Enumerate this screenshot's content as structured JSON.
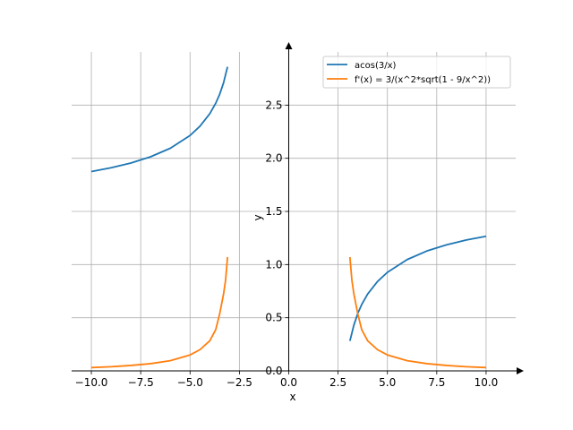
{
  "chart_data": {
    "type": "line",
    "title": "",
    "xlabel": "x",
    "ylabel": "y",
    "xlim": [
      -11.0,
      11.5
    ],
    "ylim": [
      0.0,
      3.0
    ],
    "grid": true,
    "legend_position": "top-right",
    "x_ticks": [
      -10.0,
      -7.5,
      -5.0,
      -2.5,
      0.0,
      2.5,
      5.0,
      7.5,
      10.0
    ],
    "x_tick_labels": [
      "−10.0",
      "−7.5",
      "−5.0",
      "−2.5",
      "0.0",
      "2.5",
      "5.0",
      "7.5",
      "10.0"
    ],
    "y_ticks": [
      0.0,
      0.5,
      1.0,
      1.5,
      2.0,
      2.5
    ],
    "y_tick_labels": [
      "0.0",
      "0.5",
      "1.0",
      "1.5",
      "2.0",
      "2.5"
    ],
    "series": [
      {
        "name": "acos(3/x)",
        "color": "#1f77b4",
        "segments": [
          {
            "x": [
              -10.0,
              -9.0,
              -8.0,
              -7.0,
              -6.0,
              -5.0,
              -4.5,
              -4.0,
              -3.7,
              -3.5,
              -3.3,
              -3.2,
              -3.1
            ],
            "y": [
              1.875,
              1.911,
              1.955,
              2.014,
              2.094,
              2.214,
              2.301,
              2.419,
              2.517,
              2.601,
              2.711,
              2.787,
              2.86
            ]
          },
          {
            "x": [
              3.1,
              3.2,
              3.3,
              3.5,
              3.7,
              4.0,
              4.5,
              5.0,
              6.0,
              7.0,
              8.0,
              9.0,
              10.0
            ],
            "y": [
              0.282,
              0.355,
              0.43,
              0.541,
              0.625,
              0.723,
              0.841,
              0.927,
              1.047,
              1.128,
              1.186,
              1.231,
              1.266
            ]
          }
        ]
      },
      {
        "name": "f'(x) = 3/(x^2*sqrt(1 - 9/x^2))",
        "color": "#ff7f0e",
        "segments": [
          {
            "x": [
              -10.0,
              -9.0,
              -8.0,
              -7.0,
              -6.0,
              -5.0,
              -4.5,
              -4.0,
              -3.7,
              -3.5,
              -3.3,
              -3.2,
              -3.1
            ],
            "y": [
              0.031,
              0.039,
              0.051,
              0.068,
              0.096,
              0.15,
              0.199,
              0.283,
              0.387,
              0.535,
              0.725,
              0.853,
              1.071
            ]
          },
          {
            "x": [
              3.1,
              3.2,
              3.3,
              3.5,
              3.7,
              4.0,
              4.5,
              5.0,
              6.0,
              7.0,
              8.0,
              9.0,
              10.0
            ],
            "y": [
              1.071,
              0.853,
              0.725,
              0.535,
              0.387,
              0.283,
              0.199,
              0.15,
              0.096,
              0.068,
              0.051,
              0.039,
              0.031
            ]
          }
        ]
      }
    ]
  }
}
